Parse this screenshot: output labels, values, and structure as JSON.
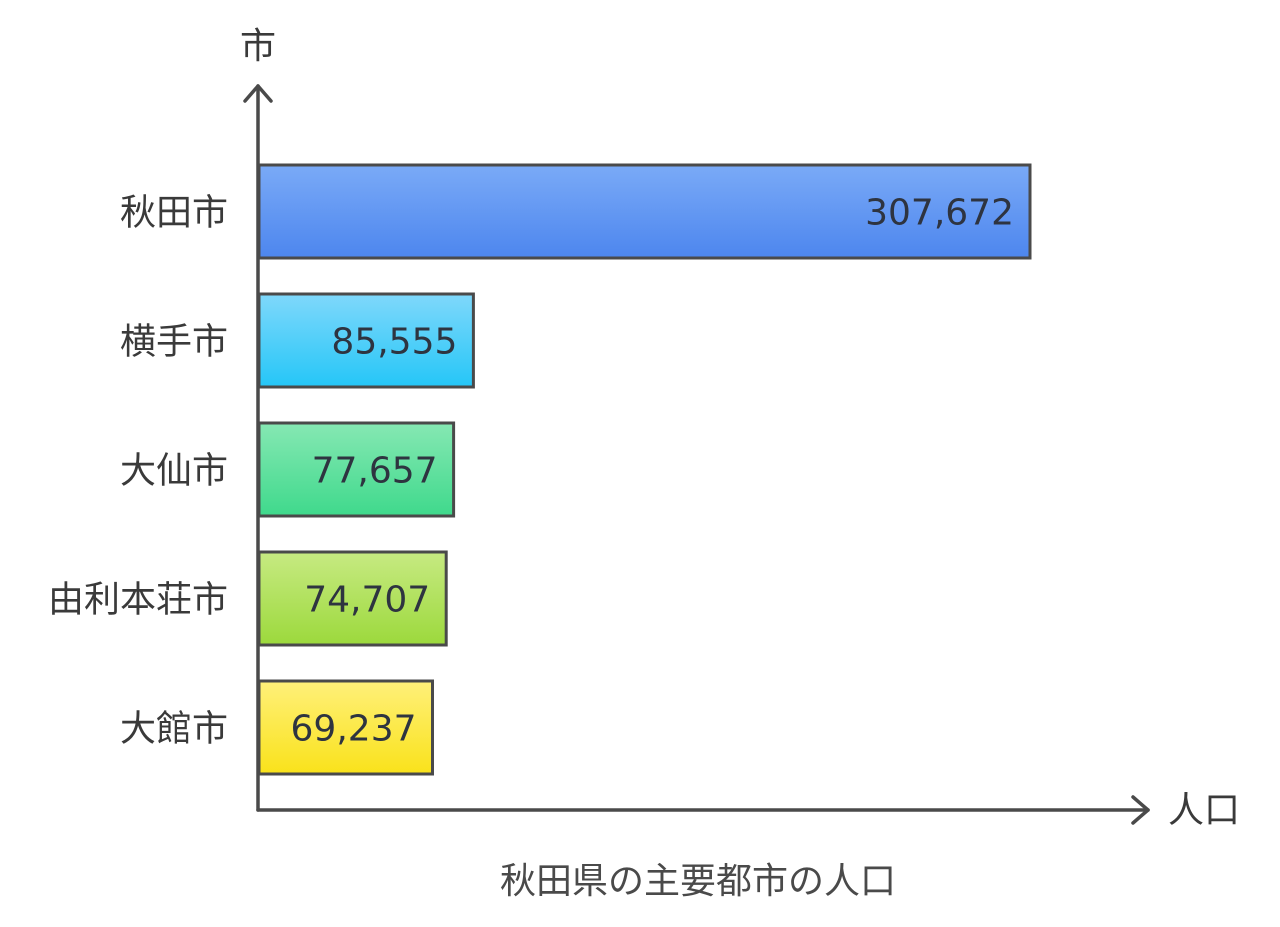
{
  "chart_data": {
    "type": "bar",
    "orientation": "horizontal",
    "title": "秋田県の主要都市の人口",
    "xlabel": "人口",
    "ylabel": "市",
    "categories": [
      "秋田市",
      "横手市",
      "大仙市",
      "由利本荘市",
      "大館市"
    ],
    "values": [
      307672,
      85555,
      77657,
      74707,
      69237
    ],
    "value_labels": [
      "307,672",
      "85,555",
      "77,657",
      "74,707",
      "69,237"
    ],
    "bar_colors": [
      {
        "top": "#7aaaf7",
        "bottom": "#4d86ee"
      },
      {
        "top": "#7fd8fb",
        "bottom": "#25c6f7"
      },
      {
        "top": "#86e8b3",
        "bottom": "#3fd98c"
      },
      {
        "top": "#c7ea82",
        "bottom": "#9cd93c"
      },
      {
        "top": "#fff07a",
        "bottom": "#f9e21a"
      }
    ],
    "xlim": [
      0,
      307672
    ],
    "grid": false,
    "legend": "none"
  }
}
